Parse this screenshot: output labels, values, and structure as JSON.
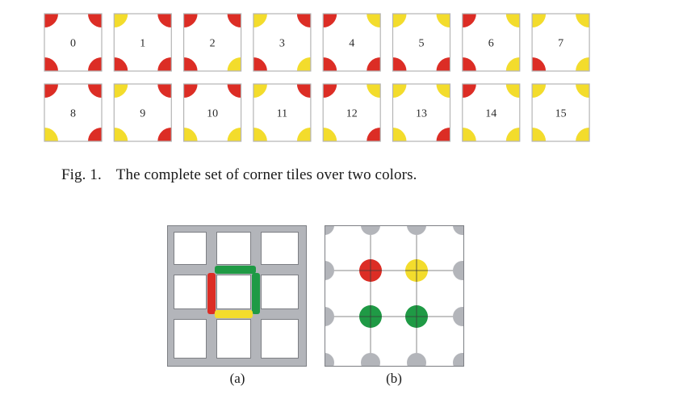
{
  "figure1": {
    "caption_number": "Fig. 1.",
    "caption_text": "The complete set of corner tiles over two colors.",
    "colors": {
      "red": "#dc2d25",
      "yellow": "#f3dc2c",
      "border": "#b5b5b5"
    },
    "tiles": [
      {
        "label": "0",
        "corners": [
          "red",
          "red",
          "red",
          "red"
        ]
      },
      {
        "label": "1",
        "corners": [
          "yellow",
          "red",
          "red",
          "red"
        ]
      },
      {
        "label": "2",
        "corners": [
          "red",
          "red",
          "red",
          "yellow"
        ]
      },
      {
        "label": "3",
        "corners": [
          "yellow",
          "red",
          "red",
          "yellow"
        ]
      },
      {
        "label": "4",
        "corners": [
          "red",
          "yellow",
          "red",
          "red"
        ]
      },
      {
        "label": "5",
        "corners": [
          "yellow",
          "yellow",
          "red",
          "red"
        ]
      },
      {
        "label": "6",
        "corners": [
          "red",
          "yellow",
          "red",
          "yellow"
        ]
      },
      {
        "label": "7",
        "corners": [
          "yellow",
          "yellow",
          "red",
          "yellow"
        ]
      },
      {
        "label": "8",
        "corners": [
          "red",
          "red",
          "yellow",
          "red"
        ]
      },
      {
        "label": "9",
        "corners": [
          "yellow",
          "red",
          "yellow",
          "red"
        ]
      },
      {
        "label": "10",
        "corners": [
          "red",
          "red",
          "yellow",
          "yellow"
        ]
      },
      {
        "label": "11",
        "corners": [
          "yellow",
          "red",
          "yellow",
          "yellow"
        ]
      },
      {
        "label": "12",
        "corners": [
          "red",
          "yellow",
          "yellow",
          "red"
        ]
      },
      {
        "label": "13",
        "corners": [
          "yellow",
          "yellow",
          "yellow",
          "red"
        ]
      },
      {
        "label": "14",
        "corners": [
          "red",
          "yellow",
          "yellow",
          "yellow"
        ]
      },
      {
        "label": "15",
        "corners": [
          "yellow",
          "yellow",
          "yellow",
          "yellow"
        ]
      }
    ]
  },
  "figure2": {
    "label_a": "(a)",
    "label_b": "(b)",
    "colors": {
      "gray": "#b3b5ba",
      "red": "#dc2d25",
      "yellow": "#f3dc2c",
      "green": "#1f9a45",
      "line": "#8a8a8a"
    },
    "edges_a": {
      "top": "green",
      "right": "green",
      "bottom": "yellow",
      "left": "red"
    },
    "vertices_b": {
      "top_left": "red",
      "top_right": "yellow",
      "bottom_left": "green",
      "bottom_right": "green"
    }
  }
}
